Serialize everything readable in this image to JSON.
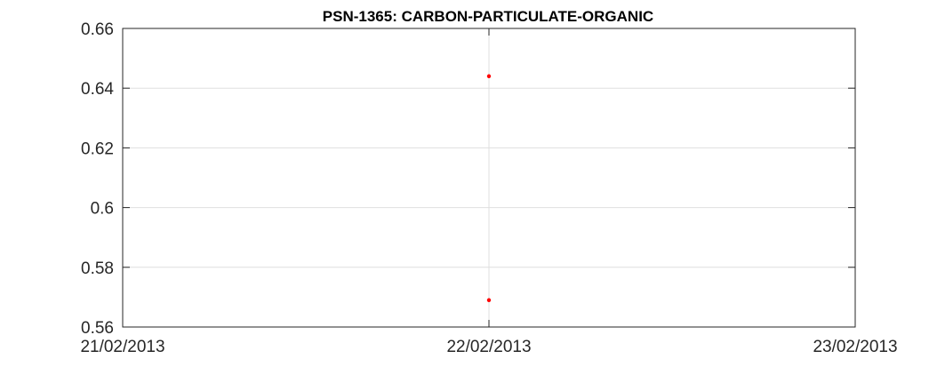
{
  "chart_data": {
    "type": "scatter",
    "title": "PSN-1365: CARBON-PARTICULATE-ORGANIC",
    "xlabel": "",
    "ylabel": "",
    "x_ticks": [
      "21/02/2013",
      "22/02/2013",
      "23/02/2013"
    ],
    "y_ticks": [
      "0.66",
      "0.64",
      "0.62",
      "0.6",
      "0.58",
      "0.56"
    ],
    "xlim": [
      "21/02/2013",
      "23/02/2013"
    ],
    "ylim": [
      0.56,
      0.66
    ],
    "grid": true,
    "marker_color": "#ff0000",
    "series": [
      {
        "points": [
          {
            "x": "22/02/2013",
            "y": 0.644
          },
          {
            "x": "22/02/2013",
            "y": 0.569
          }
        ]
      }
    ]
  }
}
